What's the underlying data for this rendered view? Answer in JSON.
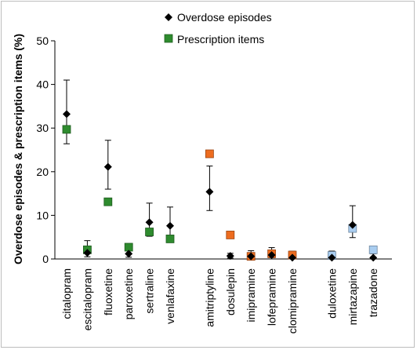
{
  "chart_data": {
    "type": "scatter",
    "title": "",
    "ylabel": "Overdose episodes & prescription items (%)",
    "ylim": [
      0,
      50
    ],
    "yticks": [
      0,
      10,
      20,
      30,
      40,
      50
    ],
    "grid": false,
    "legend_position": "top-right",
    "categories": [
      "citalopram",
      "escitalopram",
      "fluoxetine",
      "paroxetine",
      "sertraline",
      "venlafaxine",
      "amitriptyline",
      "dosulepin",
      "imipramine",
      "lofepramine",
      "clomipramine",
      "duloxetine",
      "mirtazapine",
      "trazadone"
    ],
    "groups": [
      {
        "categories": [
          "citalopram",
          "escitalopram",
          "fluoxetine",
          "paroxetine",
          "sertraline",
          "venlafaxine"
        ],
        "prescription_color": "#2e8b2e"
      },
      {
        "categories": [
          "amitriptyline",
          "dosulepin",
          "imipramine",
          "lofepramine",
          "clomipramine"
        ],
        "prescription_color": "#ed6c1f"
      },
      {
        "categories": [
          "duloxetine",
          "mirtazapine",
          "trazadone"
        ],
        "prescription_color": "#a9cdf0"
      }
    ],
    "series": [
      {
        "name": "Overdose episodes",
        "marker": "diamond",
        "color": "#000000",
        "values": [
          33.2,
          1.4,
          21.1,
          1.2,
          8.4,
          7.6,
          15.4,
          0.7,
          0.6,
          0.9,
          0.3,
          0.3,
          7.8,
          0.3
        ],
        "error_upper": [
          41.0,
          4.2,
          27.2,
          2.7,
          12.8,
          11.9,
          21.3,
          1.3,
          1.9,
          2.6,
          1.8,
          1.8,
          12.2,
          1.2
        ],
        "error_lower": [
          26.4,
          0.5,
          16.0,
          0.4,
          5.2,
          4.6,
          11.1,
          0.2,
          0.1,
          0.3,
          0.1,
          0.1,
          4.9,
          0.05
        ]
      },
      {
        "name": "Prescription items",
        "marker": "square",
        "values": [
          29.7,
          2.1,
          13.1,
          2.7,
          6.2,
          4.6,
          24.1,
          5.5,
          0.6,
          1.2,
          0.9,
          0.8,
          7.0,
          2.1
        ]
      }
    ]
  }
}
